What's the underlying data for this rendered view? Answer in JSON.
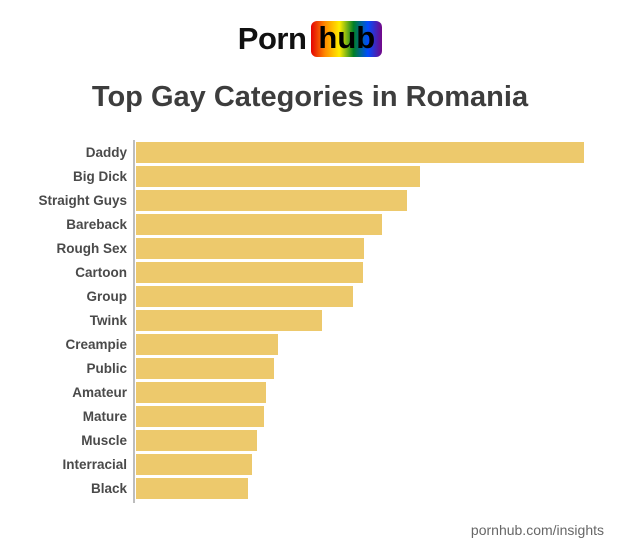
{
  "logo": {
    "word1": "Porn",
    "word2": "hub"
  },
  "title": "Top Gay Categories in Romania",
  "footer": "pornhub.com/insights",
  "colors": {
    "background": "#ffffff",
    "bar": "#edc96c",
    "axis": "#bdbdbd",
    "title_text": "#3d3d3d",
    "label_text": "#4a4a4a",
    "footer_text": "#676767",
    "pride_gradient": [
      "#e40303",
      "#ff8c00",
      "#ffed00",
      "#008026",
      "#004dff",
      "#750787"
    ]
  },
  "chart_data": {
    "type": "bar",
    "orientation": "horizontal",
    "title": "Top Gay Categories in Romania",
    "categories": [
      "Daddy",
      "Big Dick",
      "Straight Guys",
      "Bareback",
      "Rough Sex",
      "Cartoon",
      "Group",
      "Twink",
      "Creampie",
      "Public",
      "Amateur",
      "Mature",
      "Muscle",
      "Interracial",
      "Black"
    ],
    "values": [
      100,
      63.4,
      60.4,
      55,
      51,
      50.7,
      48.4,
      41.6,
      31.8,
      30.7,
      29,
      28.6,
      27.1,
      26,
      25.1
    ],
    "value_scale": "relative popularity, longest bar = 100",
    "xlim": [
      0,
      100
    ],
    "grid": false,
    "legend": false,
    "bar_color": "#edc96c"
  }
}
